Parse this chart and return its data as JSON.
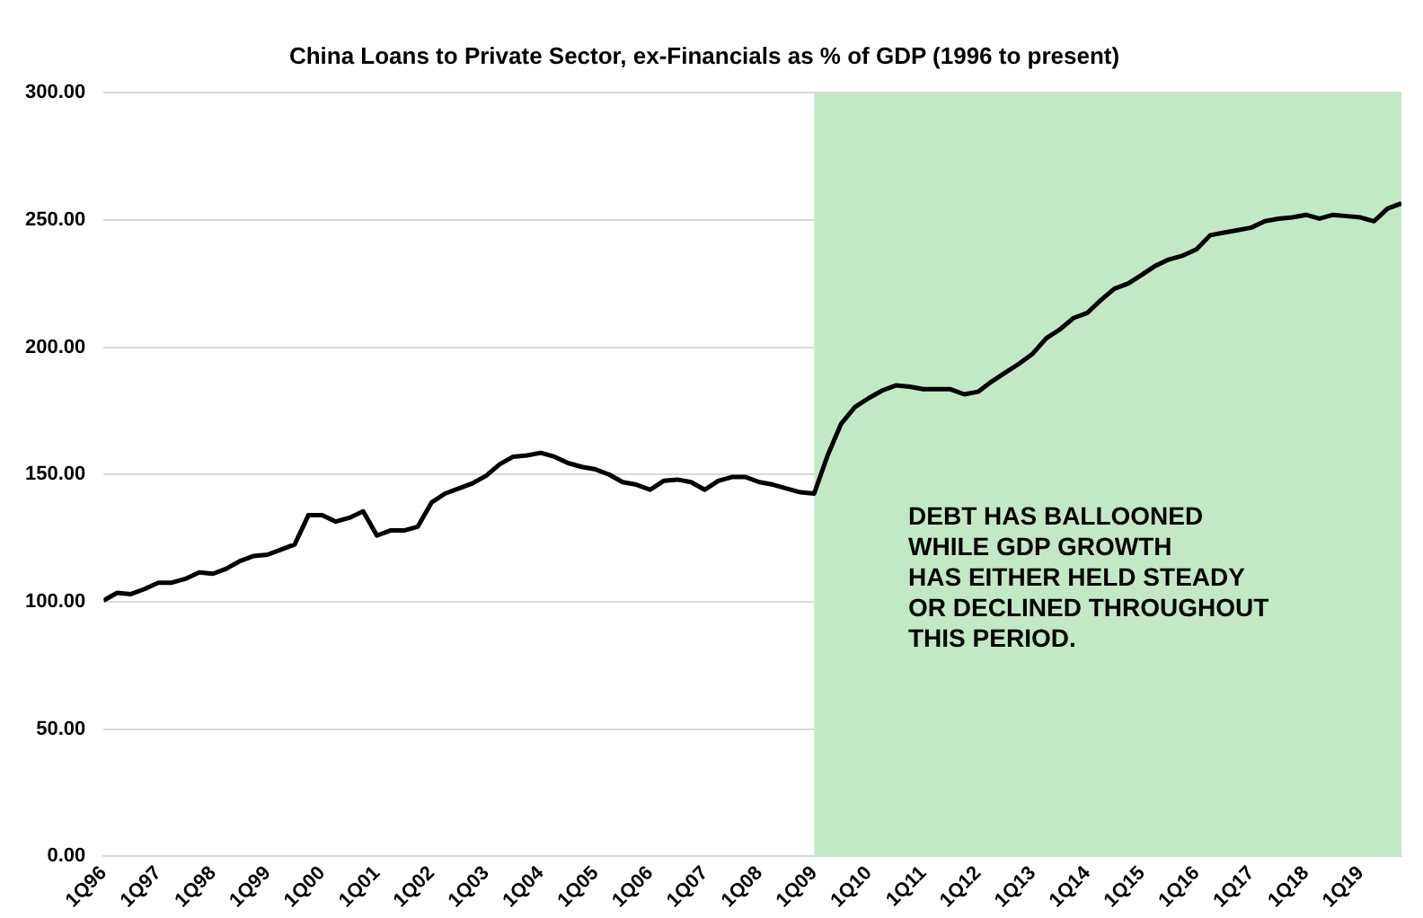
{
  "chart_data": {
    "type": "line",
    "title": "China Loans to Private Sector, ex-Financials as % of GDP (1996 to present)",
    "x": [
      "1996-01",
      "1996-04",
      "1996-07",
      "1996-10",
      "1997-01",
      "1997-04",
      "1997-07",
      "1997-10",
      "1998-01",
      "1998-04",
      "1998-07",
      "1998-10",
      "1999-01",
      "1999-04",
      "1999-07",
      "1999-10",
      "2000-01",
      "2000-04",
      "2000-07",
      "2000-10",
      "2001-01",
      "2001-04",
      "2001-07",
      "2001-10",
      "2002-01",
      "2002-04",
      "2002-07",
      "2002-10",
      "2003-01",
      "2003-04",
      "2003-07",
      "2003-10",
      "2004-01",
      "2004-04",
      "2004-07",
      "2004-10",
      "2005-01",
      "2005-04",
      "2005-07",
      "2005-10",
      "2006-01",
      "2006-04",
      "2006-07",
      "2006-10",
      "2007-01",
      "2007-04",
      "2007-07",
      "2007-10",
      "2008-01",
      "2008-04",
      "2008-07",
      "2008-10",
      "2009-01",
      "2009-04",
      "2009-07",
      "2009-10",
      "2010-01",
      "2010-04",
      "2010-07",
      "2010-10",
      "2011-01",
      "2011-04",
      "2011-07",
      "2011-10",
      "2012-01",
      "2012-04",
      "2012-07",
      "2012-10",
      "2013-01",
      "2013-04",
      "2013-07",
      "2013-10",
      "2014-01",
      "2014-04",
      "2014-07",
      "2014-10",
      "2015-01",
      "2015-04",
      "2015-07",
      "2015-10",
      "2016-01",
      "2016-04",
      "2016-07",
      "2016-10",
      "2017-01",
      "2017-04",
      "2017-07",
      "2017-10",
      "2018-01",
      "2018-04",
      "2018-07",
      "2018-10",
      "2019-01",
      "2019-04",
      "2019-07",
      "2019-10"
    ],
    "series": [
      {
        "color": "#000000",
        "values": [
          100.5,
          103.5,
          103,
          105,
          107.5,
          107.5,
          109,
          111.5,
          111,
          113,
          116,
          118,
          118.5,
          120.5,
          122.5,
          134,
          134,
          131.5,
          133,
          135.5,
          126,
          128,
          128,
          129.5,
          139,
          142.5,
          144.5,
          146.5,
          149.5,
          154,
          157,
          157.5,
          158.5,
          157,
          154.5,
          153,
          152,
          150,
          147,
          146,
          144,
          147.5,
          148,
          147,
          144,
          147.5,
          149,
          149,
          147,
          146,
          144.5,
          143,
          142.5,
          157.5,
          170,
          176.5,
          180,
          183,
          185,
          184.5,
          183.5,
          183.5,
          183.5,
          181.5,
          182.5,
          186.5,
          190,
          193.5,
          197.5,
          203.5,
          207,
          211.5,
          213.5,
          218.5,
          223,
          225,
          228.5,
          232,
          234.5,
          236,
          238.5,
          244,
          245,
          246,
          247,
          249.5,
          250.5,
          251,
          252,
          250.5,
          252,
          251.5,
          251,
          249.5,
          254.5,
          256.5
        ]
      }
    ],
    "xlim": [
      "1996-01",
      "2019-10"
    ],
    "xticks": [
      {
        "value": "1996-01",
        "label": "1Q96"
      },
      {
        "value": "1997-01",
        "label": "1Q97"
      },
      {
        "value": "1998-01",
        "label": "1Q98"
      },
      {
        "value": "1999-01",
        "label": "1Q99"
      },
      {
        "value": "2000-01",
        "label": "1Q00"
      },
      {
        "value": "2001-01",
        "label": "1Q01"
      },
      {
        "value": "2002-01",
        "label": "1Q02"
      },
      {
        "value": "2003-01",
        "label": "1Q03"
      },
      {
        "value": "2004-01",
        "label": "1Q04"
      },
      {
        "value": "2005-01",
        "label": "1Q05"
      },
      {
        "value": "2006-01",
        "label": "1Q06"
      },
      {
        "value": "2007-01",
        "label": "1Q07"
      },
      {
        "value": "2008-01",
        "label": "1Q08"
      },
      {
        "value": "2009-01",
        "label": "1Q09"
      },
      {
        "value": "2010-01",
        "label": "1Q10"
      },
      {
        "value": "2011-01",
        "label": "1Q11"
      },
      {
        "value": "2012-01",
        "label": "1Q12"
      },
      {
        "value": "2013-01",
        "label": "1Q13"
      },
      {
        "value": "2014-01",
        "label": "1Q14"
      },
      {
        "value": "2015-01",
        "label": "1Q15"
      },
      {
        "value": "2016-01",
        "label": "1Q16"
      },
      {
        "value": "2017-01",
        "label": "1Q17"
      },
      {
        "value": "2018-01",
        "label": "1Q18"
      },
      {
        "value": "2019-01",
        "label": "1Q19"
      }
    ],
    "ylim": [
      0,
      300
    ],
    "yticks": [
      {
        "value": 0,
        "label": "0.00"
      },
      {
        "value": 50,
        "label": "50.00"
      },
      {
        "value": 100,
        "label": "100.00"
      },
      {
        "value": 150,
        "label": "150.00"
      },
      {
        "value": 200,
        "label": "200.00"
      },
      {
        "value": 250,
        "label": "250.00"
      },
      {
        "value": 300,
        "label": "300.00"
      }
    ],
    "grid": "y",
    "legend": false,
    "marker": "none",
    "line_style": "solid",
    "bands": [
      {
        "axis": "x",
        "from": "2009-01",
        "to": "2019-10",
        "color": "#c3e8c6"
      }
    ],
    "annotations": [
      "DEBT HAS BALLOONED\nWHILE GDP GROWTH\nHAS EITHER HELD STEADY\nOR DECLINED THROUGHOUT\nTHIS PERIOD."
    ]
  }
}
